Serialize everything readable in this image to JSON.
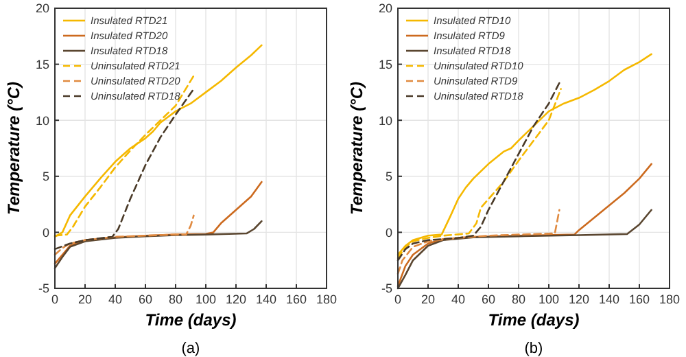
{
  "chart_data": [
    {
      "type": "line",
      "xlabel": "Time (days)",
      "ylabel": "Temperature (°C)",
      "annotations": [
        "(a)"
      ],
      "xlim": [
        0,
        180
      ],
      "xticks": [
        0,
        20,
        40,
        60,
        80,
        100,
        120,
        140,
        160,
        180
      ],
      "ylim": [
        -5,
        20
      ],
      "yticks": [
        -5,
        0,
        5,
        10,
        15,
        20
      ],
      "grid": true,
      "legend": "top left",
      "series": [
        {
          "name": "Insulated RTD21",
          "color": "#f5b800",
          "line_style": "solid",
          "x": [
            0,
            5,
            10,
            20,
            30,
            40,
            50,
            60,
            65,
            70,
            80,
            90,
            100,
            110,
            120,
            130,
            137
          ],
          "values": [
            -0.4,
            0,
            1.5,
            3.2,
            4.8,
            6.3,
            7.5,
            8.4,
            9,
            9.8,
            10.8,
            11.5,
            12.5,
            13.5,
            14.7,
            15.8,
            16.7
          ]
        },
        {
          "name": "Insulated RTD20",
          "color": "#cc6a1e",
          "line_style": "solid",
          "x": [
            0,
            5,
            10,
            20,
            40,
            60,
            80,
            100,
            105,
            110,
            120,
            130,
            137
          ],
          "values": [
            -2.8,
            -2,
            -1.2,
            -0.7,
            -0.45,
            -0.3,
            -0.2,
            -0.15,
            0,
            0.8,
            2,
            3.2,
            4.5
          ]
        },
        {
          "name": "Insulated RTD18",
          "color": "#5a4630",
          "line_style": "solid",
          "x": [
            0,
            5,
            10,
            20,
            40,
            60,
            80,
            100,
            127,
            132,
            137
          ],
          "values": [
            -3.2,
            -2.2,
            -1.3,
            -0.8,
            -0.5,
            -0.35,
            -0.25,
            -0.2,
            -0.1,
            0.3,
            1
          ]
        },
        {
          "name": "Uninsulated RTD21",
          "color": "#f5b800",
          "line_style": "dashed",
          "x": [
            0,
            8,
            12,
            20,
            30,
            40,
            50,
            60,
            70,
            80,
            93
          ],
          "values": [
            -0.3,
            -0.2,
            0.5,
            2.3,
            4,
            5.8,
            7.3,
            8.7,
            10,
            11.3,
            14.2
          ]
        },
        {
          "name": "Uninsulated RTD20",
          "color": "#e08a40",
          "line_style": "dashed",
          "x": [
            0,
            5,
            10,
            20,
            40,
            60,
            80,
            87,
            90,
            92
          ],
          "values": [
            -2,
            -1.4,
            -1,
            -0.7,
            -0.4,
            -0.3,
            -0.2,
            -0.2,
            0.6,
            1.5
          ]
        },
        {
          "name": "Uninsulated RTD18",
          "color": "#4a3a28",
          "line_style": "dashed",
          "x": [
            0,
            10,
            20,
            38,
            42,
            50,
            60,
            70,
            80,
            92
          ],
          "values": [
            -1.5,
            -1,
            -0.7,
            -0.4,
            0.3,
            3,
            6,
            8.5,
            10.5,
            12.8
          ]
        }
      ]
    },
    {
      "type": "line",
      "xlabel": "Time (days)",
      "ylabel": "Temperature (°C)",
      "annotations": [
        "(b)"
      ],
      "xlim": [
        0,
        180
      ],
      "xticks": [
        0,
        20,
        40,
        60,
        80,
        100,
        120,
        140,
        160,
        180
      ],
      "ylim": [
        -5,
        20
      ],
      "yticks": [
        -5,
        0,
        5,
        10,
        15,
        20
      ],
      "grid": true,
      "legend": "top left",
      "series": [
        {
          "name": "Insulated RTD10",
          "color": "#f5b800",
          "line_style": "solid",
          "x": [
            0,
            5,
            10,
            20,
            29,
            35,
            40,
            45,
            50,
            60,
            70,
            75,
            80,
            90,
            100,
            110,
            120,
            130,
            140,
            150,
            160,
            168
          ],
          "values": [
            -2,
            -1.2,
            -0.7,
            -0.3,
            -0.2,
            1.5,
            3,
            4,
            4.8,
            6.1,
            7.2,
            7.5,
            8.2,
            9.5,
            10.8,
            11.5,
            12,
            12.7,
            13.5,
            14.5,
            15.2,
            15.9
          ]
        },
        {
          "name": "Insulated RTD9",
          "color": "#cc6a1e",
          "line_style": "solid",
          "x": [
            0,
            5,
            10,
            20,
            30,
            50,
            80,
            117,
            120,
            130,
            140,
            150,
            160,
            168
          ],
          "values": [
            -4.8,
            -3,
            -2,
            -1,
            -0.6,
            -0.4,
            -0.3,
            -0.2,
            0.2,
            1.3,
            2.4,
            3.5,
            4.8,
            6.1
          ]
        },
        {
          "name": "Insulated RTD18",
          "color": "#5a4630",
          "line_style": "solid",
          "x": [
            0,
            5,
            10,
            20,
            30,
            50,
            80,
            120,
            152,
            160,
            168
          ],
          "values": [
            -5,
            -3.8,
            -2.5,
            -1.2,
            -0.7,
            -0.45,
            -0.35,
            -0.25,
            -0.15,
            0.7,
            2
          ]
        },
        {
          "name": "Uninsulated RTD10",
          "color": "#f5b800",
          "line_style": "dashed",
          "x": [
            0,
            5,
            10,
            20,
            30,
            47,
            52,
            55,
            70,
            80,
            90,
            100,
            108
          ],
          "values": [
            -2.3,
            -1.3,
            -0.8,
            -0.5,
            -0.3,
            -0.1,
            0.8,
            2.2,
            4.5,
            6.4,
            8.2,
            10,
            12.8
          ]
        },
        {
          "name": "Uninsulated RTD9",
          "color": "#e08a40",
          "line_style": "dashed",
          "x": [
            0,
            3,
            10,
            20,
            40,
            60,
            80,
            104,
            107
          ],
          "values": [
            -3.7,
            -2.5,
            -1.3,
            -0.8,
            -0.5,
            -0.3,
            -0.2,
            -0.1,
            2
          ]
        },
        {
          "name": "Uninsulated RTD18",
          "color": "#4a3a28",
          "line_style": "dashed",
          "x": [
            0,
            5,
            10,
            20,
            40,
            50,
            55,
            60,
            70,
            80,
            90,
            100,
            108
          ],
          "values": [
            -2.5,
            -1.5,
            -1,
            -0.7,
            -0.5,
            -0.3,
            0.5,
            2,
            4.5,
            7,
            9.5,
            11.5,
            13.6
          ]
        }
      ]
    }
  ]
}
